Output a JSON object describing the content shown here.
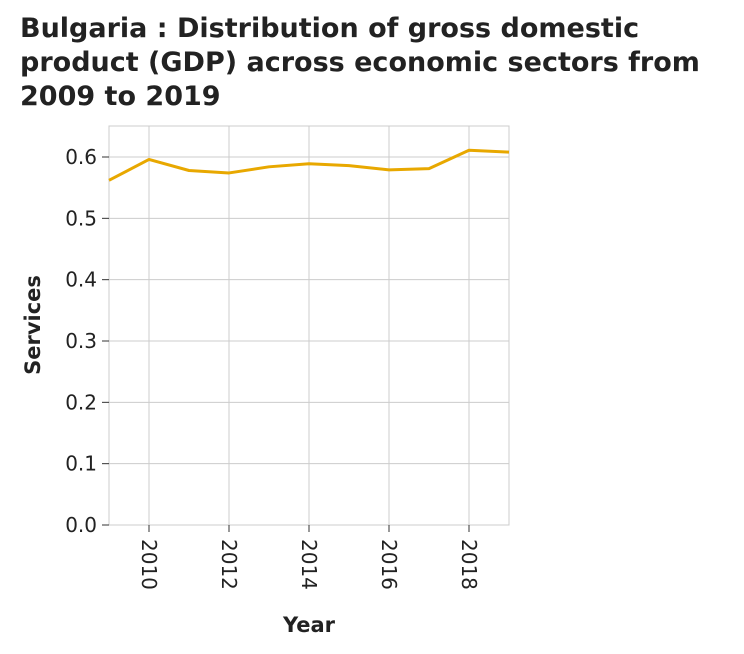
{
  "chart_data": {
    "type": "line",
    "title": "Bulgaria : Distribution of gross domestic product (GDP) across economic sectors from 2009 to 2019",
    "xlabel": "Year",
    "ylabel": "Services",
    "x": [
      2009,
      2010,
      2011,
      2012,
      2013,
      2014,
      2015,
      2016,
      2017,
      2018,
      2019
    ],
    "series": [
      {
        "values": [
          0.562,
          0.596,
          0.578,
          0.574,
          0.584,
          0.589,
          0.586,
          0.579,
          0.581,
          0.611,
          0.608
        ]
      }
    ],
    "xlim": [
      2009,
      2019
    ],
    "ylim": [
      0,
      0.6
    ],
    "x_ticks": [
      "2010",
      "2012",
      "2014",
      "2016",
      "2018"
    ],
    "y_ticks": [
      "0.0",
      "0.1",
      "0.2",
      "0.3",
      "0.4",
      "0.5",
      "0.6"
    ],
    "grid": true,
    "line_color": "#e8a800",
    "grid_color": "#cccccc"
  }
}
